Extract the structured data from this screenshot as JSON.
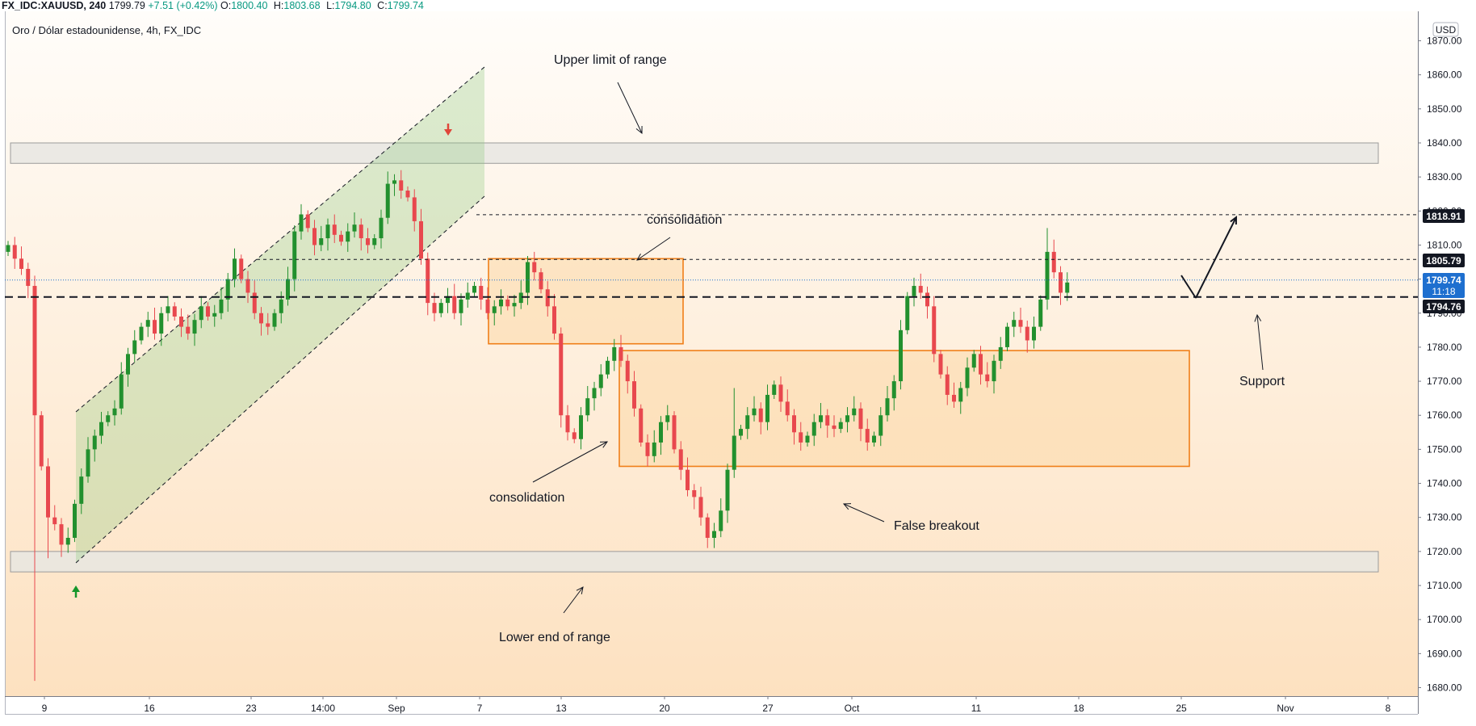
{
  "header": {
    "symbol": "FX_IDC:XAUUSD, 240",
    "price": "1799.79",
    "change": "+7.51 (+0.42%)",
    "open_label": "O:",
    "open": "1800.40",
    "high_label": "H:",
    "high": "1803.68",
    "low_label": "L:",
    "low": "1794.80",
    "close_label": "C:",
    "close": "1799.74"
  },
  "legend_title": "Oro / Dólar estadounidense, 4h, FX_IDC",
  "currency_badge": "USD",
  "colors": {
    "up": "#22902e",
    "down": "#e8484e",
    "box": "#f07f19",
    "channel": "#8fca7f",
    "zone_stroke": "#9b9b9b",
    "current_price": "#1e6fcf"
  },
  "annotations": {
    "upper_limit": "Upper limit of range",
    "consolidation_top": "consolidation",
    "consolidation_bottom": "consolidation",
    "false_breakout": "False breakout",
    "lower_end": "Lower end of range",
    "support": "Support"
  },
  "price_labels": {
    "level_1": "1818.91",
    "level_2": "1805.79",
    "current_price": "1799.74",
    "countdown": "11:18",
    "support": "1794.76"
  },
  "chart_data": {
    "type": "candlestick",
    "y_axis": {
      "ticks": [
        "1870.00",
        "1860.00",
        "1850.00",
        "1840.00",
        "1830.00",
        "1820.00",
        "1810.00",
        "1800.00",
        "1790.00",
        "1780.00",
        "1770.00",
        "1760.00",
        "1750.00",
        "1740.00",
        "1730.00",
        "1720.00",
        "1710.00",
        "1700.00",
        "1690.00",
        "1680.00"
      ],
      "range": [
        1677,
        1871
      ]
    },
    "x_axis": {
      "ticks": [
        "9",
        "16",
        "23",
        "14:00",
        "Sep",
        "7",
        "13",
        "20",
        "27",
        "Oct",
        "11",
        "18",
        "25",
        "Nov",
        "8"
      ]
    },
    "zones": [
      {
        "name": "upper-range-zone",
        "y_low": 1834,
        "y_high": 1840
      },
      {
        "name": "lower-range-zone",
        "y_low": 1714,
        "y_high": 1720
      }
    ],
    "consolidation_boxes": [
      {
        "name": "consolidation-box-upper",
        "y_low": 1781,
        "y_high": 1806
      },
      {
        "name": "consolidation-box-lower",
        "y_low": 1745,
        "y_high": 1779
      }
    ],
    "horizontal_levels": [
      {
        "name": "level-1818",
        "value": 1818.91,
        "style": "dashed"
      },
      {
        "name": "level-1805",
        "value": 1805.79,
        "style": "dashed"
      },
      {
        "name": "support-level",
        "value": 1794.76,
        "style": "dashed-bold"
      },
      {
        "name": "current-price-line",
        "value": 1799.74,
        "style": "dotted"
      }
    ],
    "path": [
      [
        0,
        1810
      ],
      [
        1,
        1806
      ],
      [
        2,
        1803
      ],
      [
        3,
        1798
      ],
      [
        4,
        1760
      ],
      [
        5,
        1745
      ],
      [
        6,
        1730
      ],
      [
        7,
        1728
      ],
      [
        8,
        1722
      ],
      [
        9,
        1724
      ],
      [
        10,
        1734
      ],
      [
        11,
        1742
      ],
      [
        12,
        1750
      ],
      [
        13,
        1754
      ],
      [
        14,
        1758
      ],
      [
        15,
        1760
      ],
      [
        16,
        1762
      ],
      [
        17,
        1772
      ],
      [
        18,
        1778
      ],
      [
        19,
        1782
      ],
      [
        20,
        1786
      ],
      [
        21,
        1788
      ],
      [
        22,
        1784
      ],
      [
        23,
        1790
      ],
      [
        24,
        1792
      ],
      [
        25,
        1789
      ],
      [
        26,
        1786
      ],
      [
        27,
        1784
      ],
      [
        28,
        1788
      ],
      [
        29,
        1792
      ],
      [
        30,
        1789
      ],
      [
        31,
        1790
      ],
      [
        32,
        1794
      ],
      [
        33,
        1800
      ],
      [
        34,
        1806
      ],
      [
        35,
        1800
      ],
      [
        36,
        1796
      ],
      [
        37,
        1790
      ],
      [
        38,
        1787
      ],
      [
        39,
        1786
      ],
      [
        40,
        1790
      ],
      [
        41,
        1794
      ],
      [
        42,
        1800
      ],
      [
        43,
        1814
      ],
      [
        44,
        1819
      ],
      [
        45,
        1815
      ],
      [
        46,
        1810
      ],
      [
        47,
        1812
      ],
      [
        48,
        1816
      ],
      [
        49,
        1813
      ],
      [
        50,
        1811
      ],
      [
        51,
        1814
      ],
      [
        52,
        1816
      ],
      [
        53,
        1812
      ],
      [
        54,
        1810
      ],
      [
        55,
        1812
      ],
      [
        56,
        1818
      ],
      [
        57,
        1828
      ],
      [
        58,
        1829
      ],
      [
        59,
        1826
      ],
      [
        60,
        1824
      ],
      [
        61,
        1817
      ],
      [
        62,
        1806
      ],
      [
        63,
        1793
      ],
      [
        64,
        1790
      ],
      [
        65,
        1793
      ],
      [
        66,
        1795
      ],
      [
        67,
        1790
      ],
      [
        68,
        1794
      ],
      [
        69,
        1796
      ],
      [
        70,
        1798
      ],
      [
        71,
        1794
      ],
      [
        72,
        1790
      ],
      [
        73,
        1792
      ],
      [
        74,
        1794
      ],
      [
        75,
        1792
      ],
      [
        76,
        1793
      ],
      [
        77,
        1796
      ],
      [
        78,
        1805
      ],
      [
        79,
        1802
      ],
      [
        80,
        1797
      ],
      [
        81,
        1792
      ],
      [
        82,
        1784
      ],
      [
        83,
        1760
      ],
      [
        84,
        1755
      ],
      [
        85,
        1753
      ],
      [
        86,
        1760
      ],
      [
        87,
        1765
      ],
      [
        88,
        1768
      ],
      [
        89,
        1772
      ],
      [
        90,
        1776
      ],
      [
        91,
        1780
      ],
      [
        92,
        1776
      ],
      [
        93,
        1770
      ],
      [
        94,
        1762
      ],
      [
        95,
        1752
      ],
      [
        96,
        1748
      ],
      [
        97,
        1752
      ],
      [
        98,
        1758
      ],
      [
        99,
        1760
      ],
      [
        100,
        1750
      ],
      [
        101,
        1744
      ],
      [
        102,
        1738
      ],
      [
        103,
        1736
      ],
      [
        104,
        1730
      ],
      [
        105,
        1724
      ],
      [
        106,
        1726
      ],
      [
        107,
        1732
      ],
      [
        108,
        1744
      ],
      [
        109,
        1754
      ],
      [
        110,
        1756
      ],
      [
        111,
        1760
      ],
      [
        112,
        1762
      ],
      [
        113,
        1758
      ],
      [
        114,
        1766
      ],
      [
        115,
        1769
      ],
      [
        116,
        1764
      ],
      [
        117,
        1760
      ],
      [
        118,
        1755
      ],
      [
        119,
        1752
      ],
      [
        120,
        1754
      ],
      [
        121,
        1758
      ],
      [
        122,
        1760
      ],
      [
        123,
        1757
      ],
      [
        124,
        1756
      ],
      [
        125,
        1758
      ],
      [
        126,
        1760
      ],
      [
        127,
        1762
      ],
      [
        128,
        1756
      ],
      [
        129,
        1752
      ],
      [
        130,
        1754
      ],
      [
        131,
        1760
      ],
      [
        132,
        1765
      ],
      [
        133,
        1770
      ],
      [
        134,
        1785
      ],
      [
        135,
        1795
      ],
      [
        136,
        1798
      ],
      [
        137,
        1796
      ],
      [
        138,
        1792
      ],
      [
        139,
        1778
      ],
      [
        140,
        1772
      ],
      [
        141,
        1766
      ],
      [
        142,
        1764
      ],
      [
        143,
        1768
      ],
      [
        144,
        1774
      ],
      [
        145,
        1778
      ],
      [
        146,
        1772
      ],
      [
        147,
        1770
      ],
      [
        148,
        1776
      ],
      [
        149,
        1780
      ],
      [
        150,
        1786
      ],
      [
        151,
        1788
      ],
      [
        152,
        1786
      ],
      [
        153,
        1782
      ],
      [
        154,
        1786
      ],
      [
        155,
        1794
      ],
      [
        156,
        1808
      ],
      [
        157,
        1802
      ],
      [
        158,
        1796
      ],
      [
        159,
        1799
      ]
    ]
  }
}
